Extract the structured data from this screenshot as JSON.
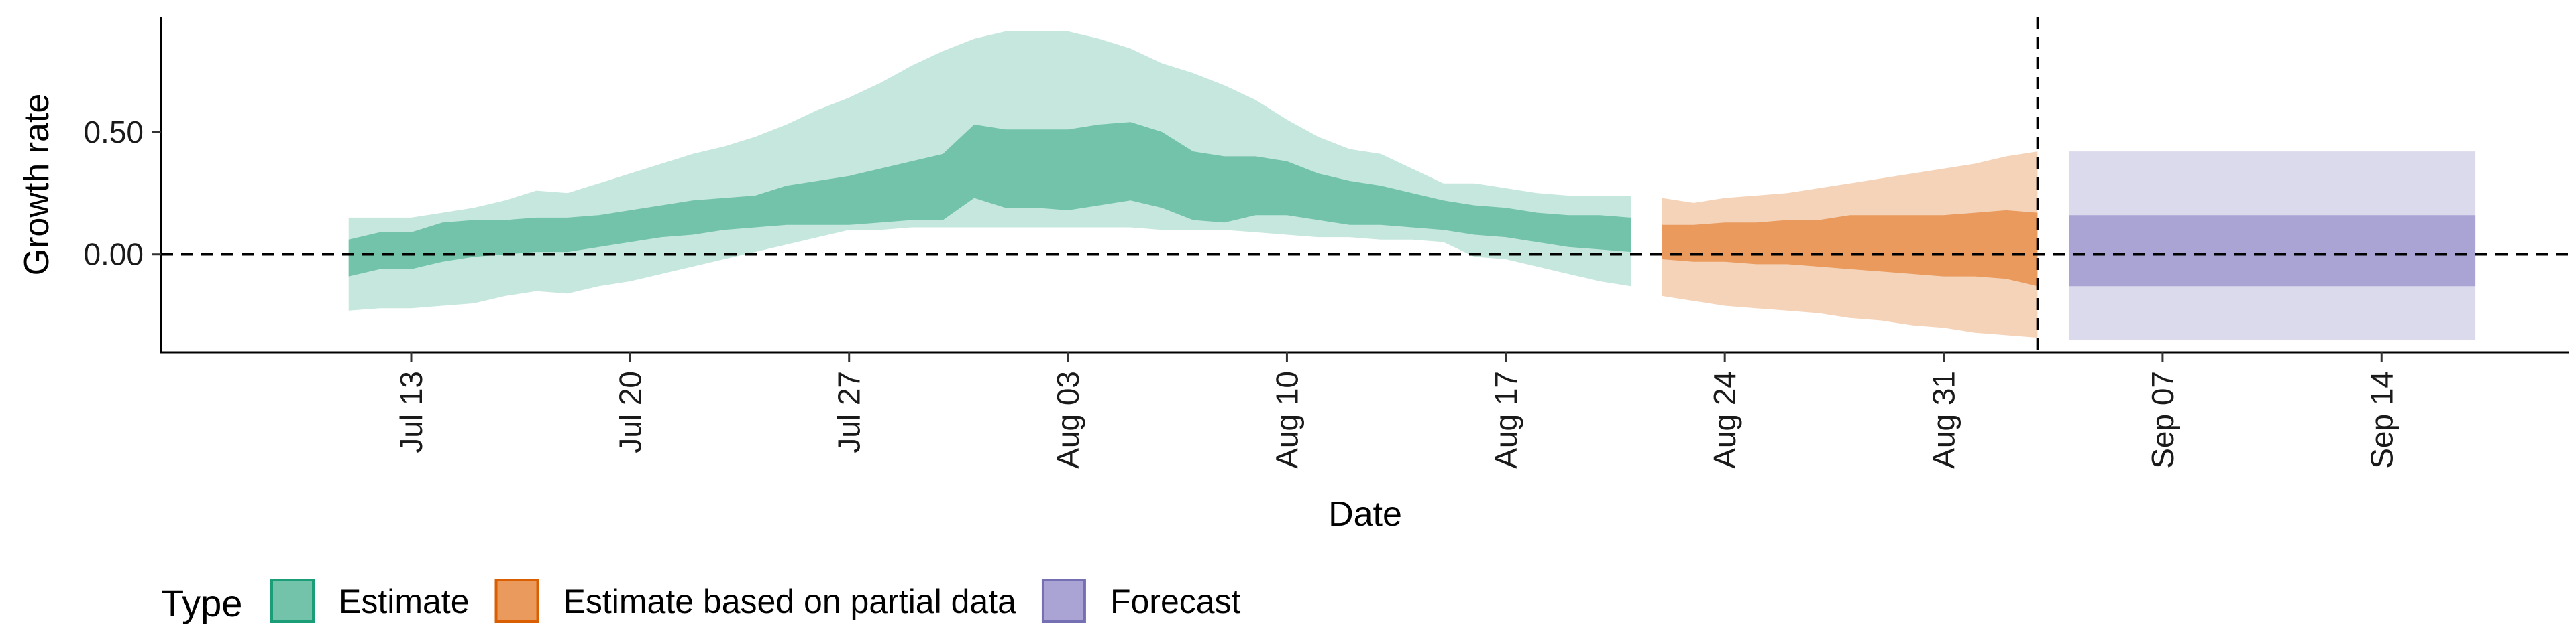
{
  "chart_data": {
    "type": "area",
    "title": "",
    "xlabel": "Date",
    "ylabel": "Growth rate",
    "x_tick_labels": [
      "Jul 13",
      "Jul 20",
      "Jul 27",
      "Aug 03",
      "Aug 10",
      "Aug 17",
      "Aug 24",
      "Aug 31",
      "Sep 07",
      "Sep 14"
    ],
    "x_ticks": [
      "2020-07-13",
      "2020-07-20",
      "2020-07-27",
      "2020-08-03",
      "2020-08-10",
      "2020-08-17",
      "2020-08-24",
      "2020-08-31",
      "2020-09-07",
      "2020-09-14"
    ],
    "y_ticks": [
      0.0,
      0.5
    ],
    "y_tick_labels": [
      "0.00",
      "0.50"
    ],
    "xlim": [
      "2020-07-05",
      "2020-09-20"
    ],
    "ylim": [
      -0.4,
      0.97
    ],
    "grid": false,
    "reference_lines": {
      "horizontal_y": 0.0,
      "vertical_x": "2020-09-03"
    },
    "legend": {
      "title": "Type",
      "position": "bottom-left",
      "entries": [
        {
          "label": "Estimate",
          "fill": "#72c3aa",
          "stroke": "#1b9e77"
        },
        {
          "label": "Estimate based on partial data",
          "fill": "#e99a5c",
          "stroke": "#d95f02"
        },
        {
          "label": "Forecast",
          "fill": "#a9a4d3",
          "stroke": "#7570b3"
        }
      ]
    },
    "series": [
      {
        "name": "Estimate",
        "color": "#1b9e77",
        "inner_color": "#72c3aa",
        "outer_color": "#c5e7dd",
        "x": [
          "2020-07-11",
          "2020-07-12",
          "2020-07-13",
          "2020-07-14",
          "2020-07-15",
          "2020-07-16",
          "2020-07-17",
          "2020-07-18",
          "2020-07-19",
          "2020-07-20",
          "2020-07-21",
          "2020-07-22",
          "2020-07-23",
          "2020-07-24",
          "2020-07-25",
          "2020-07-26",
          "2020-07-27",
          "2020-07-28",
          "2020-07-29",
          "2020-07-30",
          "2020-07-31",
          "2020-08-01",
          "2020-08-02",
          "2020-08-03",
          "2020-08-04",
          "2020-08-05",
          "2020-08-06",
          "2020-08-07",
          "2020-08-08",
          "2020-08-09",
          "2020-08-10",
          "2020-08-11",
          "2020-08-12",
          "2020-08-13",
          "2020-08-14",
          "2020-08-15",
          "2020-08-16",
          "2020-08-17",
          "2020-08-18",
          "2020-08-19",
          "2020-08-20",
          "2020-08-21"
        ],
        "outer_upper": [
          0.15,
          0.15,
          0.15,
          0.17,
          0.19,
          0.22,
          0.26,
          0.25,
          0.29,
          0.33,
          0.37,
          0.41,
          0.44,
          0.48,
          0.53,
          0.59,
          0.64,
          0.7,
          0.77,
          0.83,
          0.88,
          0.91,
          0.91,
          0.91,
          0.88,
          0.84,
          0.78,
          0.74,
          0.69,
          0.63,
          0.55,
          0.48,
          0.43,
          0.41,
          0.35,
          0.29,
          0.29,
          0.27,
          0.25,
          0.24,
          0.24,
          0.24
        ],
        "inner_upper": [
          0.06,
          0.09,
          0.09,
          0.13,
          0.14,
          0.14,
          0.15,
          0.15,
          0.16,
          0.18,
          0.2,
          0.22,
          0.23,
          0.24,
          0.28,
          0.3,
          0.32,
          0.35,
          0.38,
          0.41,
          0.53,
          0.51,
          0.51,
          0.51,
          0.53,
          0.54,
          0.5,
          0.42,
          0.4,
          0.4,
          0.38,
          0.33,
          0.3,
          0.28,
          0.25,
          0.22,
          0.2,
          0.19,
          0.17,
          0.16,
          0.16,
          0.15
        ],
        "inner_lower": [
          -0.09,
          -0.06,
          -0.06,
          -0.03,
          -0.01,
          0.0,
          0.01,
          0.01,
          0.03,
          0.05,
          0.07,
          0.08,
          0.1,
          0.11,
          0.12,
          0.12,
          0.12,
          0.13,
          0.14,
          0.14,
          0.23,
          0.19,
          0.19,
          0.18,
          0.2,
          0.22,
          0.19,
          0.14,
          0.13,
          0.16,
          0.16,
          0.14,
          0.12,
          0.12,
          0.11,
          0.1,
          0.08,
          0.07,
          0.05,
          0.03,
          0.02,
          0.01
        ],
        "outer_lower": [
          -0.23,
          -0.22,
          -0.22,
          -0.21,
          -0.2,
          -0.17,
          -0.15,
          -0.16,
          -0.13,
          -0.11,
          -0.08,
          -0.05,
          -0.02,
          0.01,
          0.04,
          0.07,
          0.1,
          0.1,
          0.11,
          0.11,
          0.11,
          0.11,
          0.11,
          0.11,
          0.11,
          0.11,
          0.1,
          0.1,
          0.1,
          0.09,
          0.08,
          0.07,
          0.07,
          0.06,
          0.06,
          0.05,
          -0.01,
          -0.02,
          -0.05,
          -0.08,
          -0.11,
          -0.13
        ]
      },
      {
        "name": "Estimate based on partial data",
        "color": "#d95f02",
        "inner_color": "#e99a5c",
        "outer_color": "#f5d3b8",
        "x": [
          "2020-08-22",
          "2020-08-23",
          "2020-08-24",
          "2020-08-25",
          "2020-08-26",
          "2020-08-27",
          "2020-08-28",
          "2020-08-29",
          "2020-08-30",
          "2020-08-31",
          "2020-09-01",
          "2020-09-02",
          "2020-09-03"
        ],
        "outer_upper": [
          0.23,
          0.21,
          0.23,
          0.24,
          0.25,
          0.27,
          0.29,
          0.31,
          0.33,
          0.35,
          0.37,
          0.4,
          0.42
        ],
        "inner_upper": [
          0.12,
          0.12,
          0.13,
          0.13,
          0.14,
          0.14,
          0.16,
          0.16,
          0.16,
          0.16,
          0.17,
          0.18,
          0.17
        ],
        "inner_lower": [
          -0.02,
          -0.03,
          -0.03,
          -0.04,
          -0.04,
          -0.05,
          -0.06,
          -0.07,
          -0.08,
          -0.09,
          -0.09,
          -0.1,
          -0.13
        ],
        "outer_lower": [
          -0.17,
          -0.19,
          -0.21,
          -0.22,
          -0.23,
          -0.24,
          -0.26,
          -0.27,
          -0.29,
          -0.3,
          -0.32,
          -0.33,
          -0.34
        ]
      },
      {
        "name": "Forecast",
        "color": "#7570b3",
        "inner_color": "#a9a4d3",
        "outer_color": "#dbd9ec",
        "x": [
          "2020-09-04",
          "2020-09-17"
        ],
        "outer_upper": [
          0.42,
          0.42
        ],
        "inner_upper": [
          0.16,
          0.16
        ],
        "inner_lower": [
          -0.13,
          -0.13
        ],
        "outer_lower": [
          -0.35,
          -0.35
        ]
      }
    ]
  }
}
